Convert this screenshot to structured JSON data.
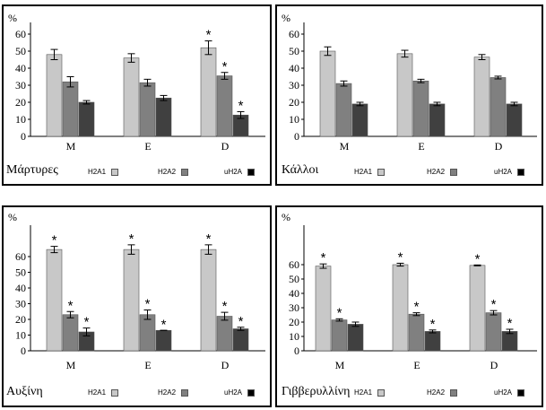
{
  "chart_data": [
    {
      "type": "bar",
      "title": "Μάρτυρες",
      "ylabel": "%",
      "ylim": [
        0,
        60
      ],
      "yticks": [
        "0",
        "10",
        "20",
        "30",
        "40",
        "50",
        "60"
      ],
      "categories": [
        "M",
        "E",
        "D"
      ],
      "series": [
        {
          "name": "H2A1",
          "values": [
            48,
            46,
            52
          ],
          "errors": [
            3,
            2.5,
            4
          ],
          "color": "#c8c8c8",
          "stars": [
            false,
            false,
            true
          ]
        },
        {
          "name": "H2A2",
          "values": [
            32,
            31.5,
            35.5
          ],
          "errors": [
            3,
            2,
            2
          ],
          "color": "#808080",
          "stars": [
            false,
            false,
            true
          ]
        },
        {
          "name": "uH2A",
          "values": [
            20,
            22.5,
            12.5
          ],
          "errors": [
            1,
            1.5,
            2
          ],
          "color": "#404040",
          "stars": [
            false,
            false,
            true
          ]
        }
      ],
      "grid": false,
      "legend": "bottom-right"
    },
    {
      "type": "bar",
      "title": "Κάλλοι",
      "ylabel": "%",
      "ylim": [
        0,
        60
      ],
      "yticks": [
        "0",
        "10",
        "20",
        "30",
        "40",
        "50",
        "60"
      ],
      "categories": [
        "M",
        "E",
        "D"
      ],
      "series": [
        {
          "name": "H2A1",
          "values": [
            50,
            48.5,
            46.5
          ],
          "errors": [
            2.5,
            2,
            1.5
          ],
          "color": "#c8c8c8",
          "stars": [
            false,
            false,
            false
          ]
        },
        {
          "name": "H2A2",
          "values": [
            31,
            32.5,
            34.5
          ],
          "errors": [
            1.5,
            1,
            0.8
          ],
          "color": "#808080",
          "stars": [
            false,
            false,
            false
          ]
        },
        {
          "name": "uH2A",
          "values": [
            19,
            19,
            19
          ],
          "errors": [
            1,
            1,
            1
          ],
          "color": "#404040",
          "stars": [
            false,
            false,
            false
          ]
        }
      ],
      "grid": false,
      "legend": "bottom-right"
    },
    {
      "type": "bar",
      "title": "Αυξίνη",
      "ylabel": "%",
      "ylim": [
        0,
        60
      ],
      "yticks": [
        "0",
        "10",
        "20",
        "30",
        "40",
        "50",
        "60"
      ],
      "categories": [
        "M",
        "E",
        "D"
      ],
      "series": [
        {
          "name": "H2A1",
          "values": [
            64.5,
            64.5,
            64.5
          ],
          "errors": [
            2,
            3,
            3
          ],
          "color": "#c8c8c8",
          "stars": [
            true,
            true,
            true
          ]
        },
        {
          "name": "H2A2",
          "values": [
            23,
            23,
            22
          ],
          "errors": [
            2,
            3,
            2.5
          ],
          "color": "#808080",
          "stars": [
            true,
            true,
            true
          ]
        },
        {
          "name": "uH2A",
          "values": [
            12,
            13,
            14
          ],
          "errors": [
            2.5,
            0,
            1
          ],
          "color": "#404040",
          "stars": [
            true,
            true,
            true
          ]
        }
      ],
      "grid": false,
      "legend": "bottom-right"
    },
    {
      "type": "bar",
      "title": "Γιββερυλλίνη",
      "ylabel": "%",
      "ylim": [
        0,
        60
      ],
      "yticks": [
        "0",
        "10",
        "20",
        "30",
        "40",
        "50",
        "60"
      ],
      "categories": [
        "M",
        "E",
        "D"
      ],
      "series": [
        {
          "name": "H2A1",
          "values": [
            59,
            60,
            59.5
          ],
          "errors": [
            1.5,
            1,
            0.3
          ],
          "color": "#c8c8c8",
          "stars": [
            true,
            true,
            true
          ]
        },
        {
          "name": "H2A2",
          "values": [
            21.5,
            25.5,
            26.5
          ],
          "errors": [
            0.8,
            1,
            1.5
          ],
          "color": "#808080",
          "stars": [
            true,
            true,
            true
          ]
        },
        {
          "name": "uH2A",
          "values": [
            18.5,
            13.5,
            13.5
          ],
          "errors": [
            1.5,
            1,
            1.5
          ],
          "color": "#404040",
          "stars": [
            false,
            true,
            true
          ]
        }
      ],
      "grid": false,
      "legend": "bottom-right"
    }
  ]
}
